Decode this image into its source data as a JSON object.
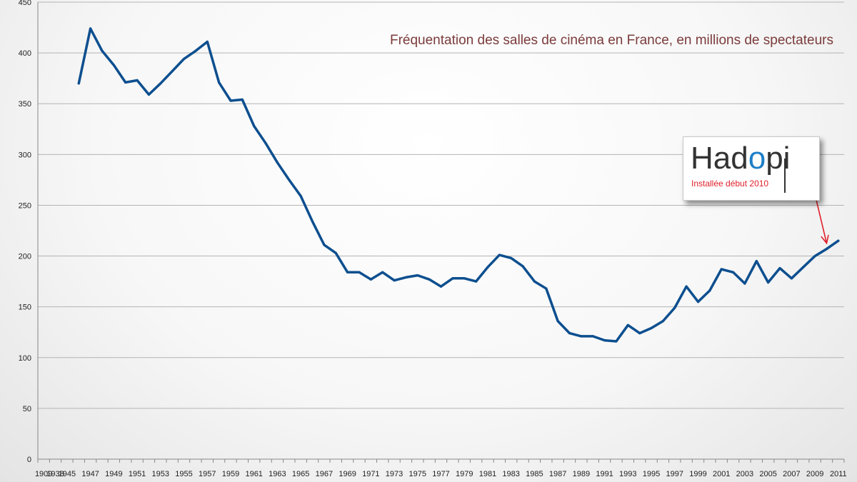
{
  "chart_data": {
    "type": "line",
    "title": "Fréquentation des salles de cinéma en France, en millions de spectateurs",
    "xlabel": "",
    "ylabel": "",
    "ylim": [
      0,
      450
    ],
    "yticks": [
      0,
      50,
      100,
      150,
      200,
      250,
      300,
      350,
      400,
      450
    ],
    "xcategories": [
      "1909",
      "1938",
      "1945",
      "1946",
      "1947",
      "1948",
      "1949",
      "1950",
      "1951",
      "1952",
      "1953",
      "1954",
      "1955",
      "1956",
      "1957",
      "1958",
      "1959",
      "1960",
      "1961",
      "1962",
      "1963",
      "1964",
      "1965",
      "1966",
      "1967",
      "1968",
      "1969",
      "1970",
      "1971",
      "1972",
      "1973",
      "1974",
      "1975",
      "1976",
      "1977",
      "1978",
      "1979",
      "1980",
      "1981",
      "1982",
      "1983",
      "1984",
      "1985",
      "1986",
      "1987",
      "1988",
      "1989",
      "1990",
      "1991",
      "1992",
      "1993",
      "1994",
      "1995",
      "1996",
      "1997",
      "1998",
      "1999",
      "2000",
      "2001",
      "2002",
      "2003",
      "2004",
      "2005",
      "2006",
      "2007",
      "2008",
      "2009",
      "2010",
      "2011"
    ],
    "xtick_labels": [
      "1909",
      "1938",
      "1945",
      "1947",
      "1949",
      "1951",
      "1953",
      "1955",
      "1957",
      "1959",
      "1961",
      "1963",
      "1965",
      "1967",
      "1969",
      "1971",
      "1973",
      "1975",
      "1977",
      "1979",
      "1981",
      "1983",
      "1985",
      "1987",
      "1989",
      "1991",
      "1993",
      "1995",
      "1997",
      "1999",
      "2001",
      "2003",
      "2005",
      "2007",
      "2009",
      "2011"
    ],
    "grid": true,
    "legend": "none",
    "series": [
      {
        "color": "#0d4f8f",
        "points": [
          {
            "x": "1946",
            "y": 370
          },
          {
            "x": "1947",
            "y": 424
          },
          {
            "x": "1948",
            "y": 402
          },
          {
            "x": "1949",
            "y": 388
          },
          {
            "x": "1950",
            "y": 371
          },
          {
            "x": "1951",
            "y": 373
          },
          {
            "x": "1952",
            "y": 359
          },
          {
            "x": "1953",
            "y": 370
          },
          {
            "x": "1954",
            "y": 382
          },
          {
            "x": "1955",
            "y": 394
          },
          {
            "x": "1956",
            "y": 402
          },
          {
            "x": "1957",
            "y": 411
          },
          {
            "x": "1958",
            "y": 371
          },
          {
            "x": "1959",
            "y": 353
          },
          {
            "x": "1960",
            "y": 354
          },
          {
            "x": "1961",
            "y": 328
          },
          {
            "x": "1962",
            "y": 311
          },
          {
            "x": "1963",
            "y": 292
          },
          {
            "x": "1964",
            "y": 275
          },
          {
            "x": "1965",
            "y": 259
          },
          {
            "x": "1966",
            "y": 234
          },
          {
            "x": "1967",
            "y": 211
          },
          {
            "x": "1968",
            "y": 203
          },
          {
            "x": "1969",
            "y": 184
          },
          {
            "x": "1970",
            "y": 184
          },
          {
            "x": "1971",
            "y": 177
          },
          {
            "x": "1972",
            "y": 184
          },
          {
            "x": "1973",
            "y": 176
          },
          {
            "x": "1974",
            "y": 179
          },
          {
            "x": "1975",
            "y": 181
          },
          {
            "x": "1976",
            "y": 177
          },
          {
            "x": "1977",
            "y": 170
          },
          {
            "x": "1978",
            "y": 178
          },
          {
            "x": "1979",
            "y": 178
          },
          {
            "x": "1980",
            "y": 175
          },
          {
            "x": "1981",
            "y": 189
          },
          {
            "x": "1982",
            "y": 201
          },
          {
            "x": "1983",
            "y": 198
          },
          {
            "x": "1984",
            "y": 190
          },
          {
            "x": "1985",
            "y": 175
          },
          {
            "x": "1986",
            "y": 168
          },
          {
            "x": "1987",
            "y": 136
          },
          {
            "x": "1988",
            "y": 124
          },
          {
            "x": "1989",
            "y": 121
          },
          {
            "x": "1990",
            "y": 121
          },
          {
            "x": "1991",
            "y": 117
          },
          {
            "x": "1992",
            "y": 116
          },
          {
            "x": "1993",
            "y": 132
          },
          {
            "x": "1994",
            "y": 124
          },
          {
            "x": "1995",
            "y": 129
          },
          {
            "x": "1996",
            "y": 136
          },
          {
            "x": "1997",
            "y": 149
          },
          {
            "x": "1998",
            "y": 170
          },
          {
            "x": "1999",
            "y": 155
          },
          {
            "x": "2000",
            "y": 166
          },
          {
            "x": "2001",
            "y": 187
          },
          {
            "x": "2002",
            "y": 184
          },
          {
            "x": "2003",
            "y": 173
          },
          {
            "x": "2004",
            "y": 195
          },
          {
            "x": "2005",
            "y": 174
          },
          {
            "x": "2006",
            "y": 188
          },
          {
            "x": "2007",
            "y": 178
          },
          {
            "x": "2008",
            "y": 189
          },
          {
            "x": "2009",
            "y": 200
          },
          {
            "x": "2010",
            "y": 207
          },
          {
            "x": "2011",
            "y": 215
          }
        ]
      }
    ],
    "annotation": {
      "logo_text_before": "Had",
      "logo_text_o": "o",
      "logo_text_after": "pi",
      "note": "Installée début 2010",
      "points_to_x": "2010",
      "arrow_color": "#e0202a"
    }
  }
}
